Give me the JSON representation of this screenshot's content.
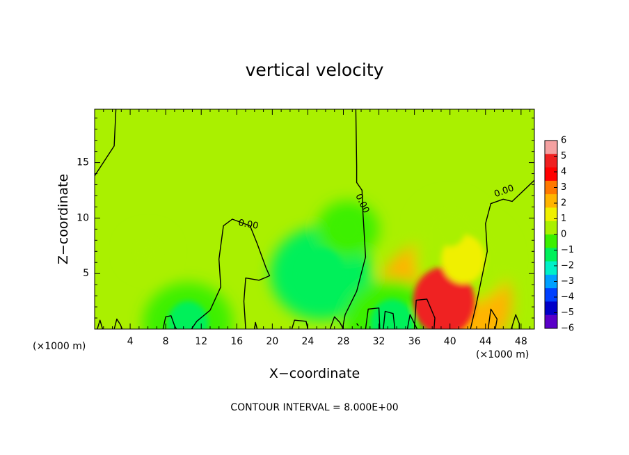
{
  "chart_data": {
    "type": "heatmap",
    "title": "vertical velocity",
    "xlabel": "X−coordinate",
    "ylabel": "Z−coordinate",
    "x_unit": "(×1000 m)",
    "xlim": [
      0,
      49.5
    ],
    "ylim": [
      0,
      19.8
    ],
    "x_ticks": [
      4,
      8,
      12,
      16,
      20,
      24,
      28,
      32,
      36,
      40,
      44,
      48
    ],
    "y_ticks": [
      5,
      10,
      15
    ],
    "colorbar": {
      "ticks": [
        6,
        5,
        4,
        3,
        2,
        1,
        0,
        -1,
        -2,
        -3,
        -4,
        -5,
        -6
      ],
      "tick_labels": [
        "6",
        "5",
        "4",
        "3",
        "2",
        "1",
        "0",
        "−1",
        "−2",
        "−3",
        "−4",
        "−5",
        "−6"
      ],
      "colors": [
        "#f4a1a1",
        "#ef2020",
        "#ff0000",
        "#ff7800",
        "#ffb400",
        "#f0f000",
        "#aaf000",
        "#3cf000",
        "#00f05a",
        "#00f0c8",
        "#00a0ff",
        "#0040ff",
        "#0000c8",
        "#5a00c8"
      ]
    },
    "contour_label": "0.00",
    "contour_interval_text": "CONTOUR INTERVAL = 8.000E+00",
    "features": [
      {
        "x": 39.3,
        "z": 2.5,
        "value": 4.5
      },
      {
        "x": 41.5,
        "z": 6.3,
        "value": 1.5
      },
      {
        "x": 40,
        "z": 9,
        "value": 0.8
      },
      {
        "x": 25.5,
        "z": 5,
        "value": -1.6
      },
      {
        "x": 28.5,
        "z": 9,
        "value": -0.6
      },
      {
        "x": 10.5,
        "z": 0.5,
        "value": -1.3
      },
      {
        "x": 33.5,
        "z": 0.5,
        "value": -1.5
      },
      {
        "x": 6,
        "z": 7,
        "value": 0.2
      }
    ],
    "contours": [
      [
        [
          2.4,
          19.8
        ],
        [
          2.2,
          16.5
        ],
        [
          0,
          13.8
        ]
      ],
      [
        [
          0.3,
          0
        ],
        [
          0.6,
          0.8
        ],
        [
          0.9,
          0
        ]
      ],
      [
        [
          2.2,
          0
        ],
        [
          2.5,
          0.9
        ],
        [
          2.9,
          0.4
        ],
        [
          3.1,
          0
        ]
      ],
      [
        [
          7.7,
          0
        ],
        [
          8,
          1.1
        ],
        [
          8.6,
          1.2
        ],
        [
          9,
          0.3
        ],
        [
          9.2,
          0
        ]
      ],
      [
        [
          10.9,
          0
        ],
        [
          11.5,
          0.7
        ],
        [
          13,
          1.7
        ],
        [
          14.2,
          3.8
        ],
        [
          14,
          6.3
        ],
        [
          14.5,
          9.3
        ],
        [
          15.5,
          9.9
        ],
        [
          17.5,
          9.3
        ],
        [
          18.3,
          7.7
        ],
        [
          19.3,
          5.5
        ],
        [
          19.7,
          4.8
        ],
        [
          18.5,
          4.4
        ],
        [
          17,
          4.6
        ],
        [
          16.8,
          2.5
        ],
        [
          17,
          0
        ]
      ],
      [
        [
          18,
          0
        ],
        [
          18.1,
          0.6
        ],
        [
          18.3,
          0
        ]
      ],
      [
        [
          22.2,
          0
        ],
        [
          22.5,
          0.8
        ],
        [
          23.8,
          0.7
        ],
        [
          24,
          0
        ]
      ],
      [
        [
          26.5,
          0
        ],
        [
          27,
          1.1
        ],
        [
          27.6,
          0.6
        ],
        [
          28,
          0
        ]
      ],
      [
        [
          29.5,
          0.5
        ],
        [
          29.7,
          0.3
        ]
      ],
      [
        [
          27.9,
          0
        ],
        [
          28.2,
          1.3
        ],
        [
          29.5,
          3.4
        ],
        [
          30.5,
          6.5
        ],
        [
          30.2,
          10.5
        ],
        [
          30.1,
          12.5
        ],
        [
          29.5,
          13.2
        ],
        [
          29.5,
          14.7
        ],
        [
          29.4,
          19.8
        ]
      ],
      [
        [
          30.5,
          0
        ],
        [
          30.8,
          1.8
        ],
        [
          32,
          1.9
        ],
        [
          32.1,
          0
        ]
      ],
      [
        [
          32.5,
          0
        ],
        [
          32.7,
          1.6
        ],
        [
          33.6,
          1.4
        ],
        [
          33.8,
          0
        ]
      ],
      [
        [
          35.2,
          0
        ],
        [
          35.5,
          1.3
        ],
        [
          36.3,
          0
        ]
      ],
      [
        [
          36,
          0
        ],
        [
          36.2,
          2.6
        ],
        [
          37.4,
          2.7
        ],
        [
          38.3,
          1
        ],
        [
          38.2,
          0
        ]
      ],
      [
        [
          42.3,
          0
        ],
        [
          42.9,
          2
        ],
        [
          44.2,
          7
        ],
        [
          44,
          9.5
        ],
        [
          44.6,
          11.3
        ],
        [
          46,
          11.7
        ],
        [
          47,
          11.5
        ],
        [
          49.5,
          13.4
        ]
      ],
      [
        [
          44.3,
          0
        ],
        [
          44.6,
          1.8
        ],
        [
          45.3,
          0.9
        ],
        [
          45.1,
          0
        ]
      ],
      [
        [
          46.9,
          0
        ],
        [
          47.4,
          1.3
        ],
        [
          47.8,
          0.5
        ],
        [
          47.8,
          0
        ]
      ]
    ]
  }
}
